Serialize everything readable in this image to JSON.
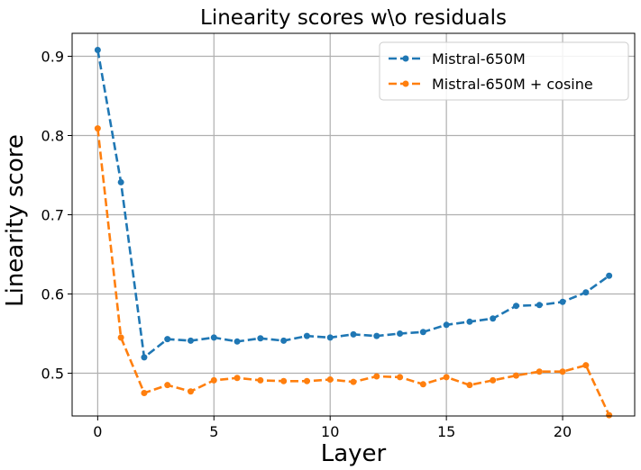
{
  "chart_data": {
    "type": "line",
    "title": "Linearity scores w\\o residuals",
    "xlabel": "Layer",
    "ylabel": "Linearity score",
    "xlim": [
      -1.1,
      23.1
    ],
    "ylim": [
      0.446,
      0.929
    ],
    "x_ticks": [
      0,
      5,
      10,
      15,
      20
    ],
    "y_ticks": [
      0.5,
      0.6,
      0.7,
      0.8,
      0.9
    ],
    "x_tick_labels": [
      "0",
      "5",
      "10",
      "15",
      "20"
    ],
    "y_tick_labels": [
      "0.5",
      "0.6",
      "0.7",
      "0.8",
      "0.9"
    ],
    "grid": true,
    "legend": {
      "position": "top-right"
    },
    "x": [
      0,
      1,
      2,
      3,
      4,
      5,
      6,
      7,
      8,
      9,
      10,
      11,
      12,
      13,
      14,
      15,
      16,
      17,
      18,
      19,
      20,
      21,
      22
    ],
    "series": [
      {
        "name": "Mistral-650M",
        "color": "#1f77b4",
        "style": "dashed",
        "marker": "circle",
        "values": [
          0.908,
          0.741,
          0.52,
          0.543,
          0.541,
          0.545,
          0.54,
          0.544,
          0.541,
          0.547,
          0.545,
          0.549,
          0.547,
          0.55,
          0.552,
          0.561,
          0.565,
          0.569,
          0.585,
          0.586,
          0.59,
          0.602,
          0.623
        ]
      },
      {
        "name": "Mistral-650M + cosine",
        "color": "#ff7f0e",
        "style": "dashed",
        "marker": "circle",
        "values": [
          0.809,
          0.545,
          0.475,
          0.485,
          0.477,
          0.491,
          0.494,
          0.491,
          0.49,
          0.49,
          0.492,
          0.489,
          0.496,
          0.495,
          0.486,
          0.495,
          0.485,
          0.491,
          0.497,
          0.502,
          0.502,
          0.51,
          0.447
        ]
      }
    ]
  }
}
